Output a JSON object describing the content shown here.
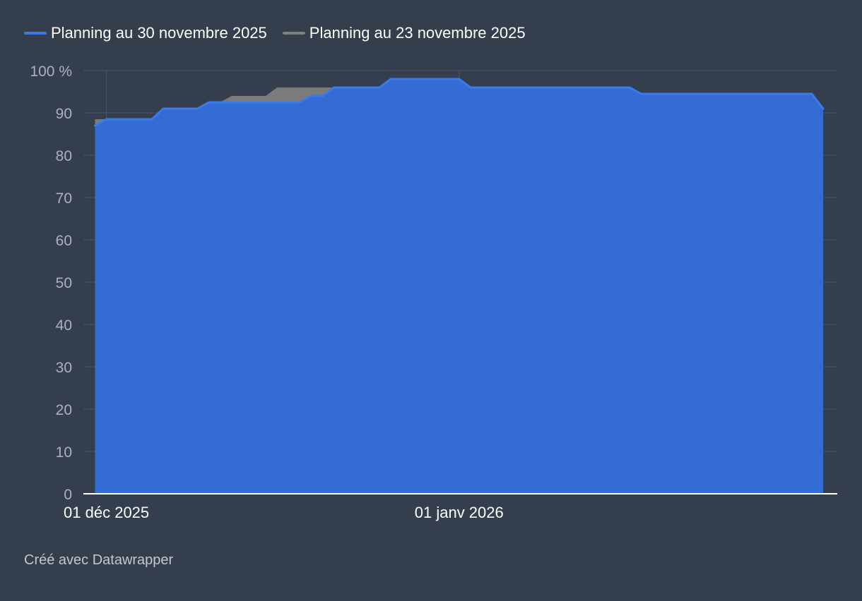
{
  "chart_data": {
    "type": "area",
    "title": "",
    "xlabel": "",
    "ylabel": "",
    "y_unit_suffix": " %",
    "ylim": [
      0,
      100
    ],
    "yticks": [
      0,
      10,
      20,
      30,
      40,
      50,
      60,
      70,
      80,
      90,
      100
    ],
    "xlim": [
      "2025-11-30",
      "2026-02-04"
    ],
    "xticks": [
      {
        "date": "2025-12-01",
        "label": "01 déc 2025"
      },
      {
        "date": "2026-01-01",
        "label": "01 janv 2026"
      }
    ],
    "grid": true,
    "legend_position": "top-left",
    "series": [
      {
        "name": "Planning au 23 novembre 2025",
        "color": "#7f7f7f",
        "points": [
          [
            "2025-11-30",
            88.5
          ],
          [
            "2025-12-01",
            88.5
          ],
          [
            "2025-12-02",
            88.5
          ],
          [
            "2025-12-06",
            88.5
          ],
          [
            "2025-12-07",
            91
          ],
          [
            "2025-12-09",
            91
          ],
          [
            "2025-12-10",
            91
          ],
          [
            "2025-12-11",
            92.5
          ],
          [
            "2025-12-12",
            94
          ],
          [
            "2025-12-14",
            94
          ],
          [
            "2025-12-15",
            94
          ],
          [
            "2025-12-16",
            96
          ],
          [
            "2025-12-21",
            96
          ],
          [
            "2025-12-22",
            96
          ],
          [
            "2025-12-26",
            96
          ],
          [
            "2025-12-27",
            98
          ],
          [
            "2025-12-31",
            98
          ],
          [
            "2026-01-01",
            98
          ],
          [
            "2026-01-02",
            96
          ],
          [
            "2026-01-06",
            96
          ],
          [
            "2026-01-15",
            96
          ],
          [
            "2026-01-16",
            96
          ],
          [
            "2026-01-17",
            94.5
          ],
          [
            "2026-01-31",
            94.5
          ],
          [
            "2026-02-01",
            94.5
          ],
          [
            "2026-02-02",
            91
          ]
        ]
      },
      {
        "name": "Planning au 30 novembre 2025",
        "color": "#3b7be8",
        "points": [
          [
            "2025-11-30",
            87
          ],
          [
            "2025-12-01",
            88.5
          ],
          [
            "2025-12-02",
            88.5
          ],
          [
            "2025-12-05",
            88.5
          ],
          [
            "2025-12-06",
            91
          ],
          [
            "2025-12-09",
            91
          ],
          [
            "2025-12-10",
            92.5
          ],
          [
            "2025-12-13",
            92.5
          ],
          [
            "2025-12-14",
            92.5
          ],
          [
            "2025-12-18",
            92.5
          ],
          [
            "2025-12-19",
            94
          ],
          [
            "2025-12-20",
            94
          ],
          [
            "2025-12-21",
            96
          ],
          [
            "2025-12-25",
            96
          ],
          [
            "2025-12-26",
            98
          ],
          [
            "2025-12-31",
            98
          ],
          [
            "2026-01-01",
            98
          ],
          [
            "2026-01-02",
            96
          ],
          [
            "2026-01-15",
            96
          ],
          [
            "2026-01-16",
            96
          ],
          [
            "2026-01-17",
            94.5
          ],
          [
            "2026-01-31",
            94.5
          ],
          [
            "2026-02-01",
            94.5
          ],
          [
            "2026-02-02",
            91
          ]
        ]
      }
    ]
  },
  "legend": {
    "items": [
      {
        "label": "Planning au 30 novembre 2025",
        "color": "#3b7be8"
      },
      {
        "label": "Planning au 23 novembre 2025",
        "color": "#7f7f7f"
      }
    ]
  },
  "footer": {
    "credit": "Créé avec Datawrapper"
  },
  "colors": {
    "background": "#343e4d",
    "grid": "#4a5566",
    "axis_text": "#aab2bd",
    "fill_blue": "#346cd3",
    "line_blue": "#3b7be8",
    "fill_gray": "#7b7b7b"
  }
}
